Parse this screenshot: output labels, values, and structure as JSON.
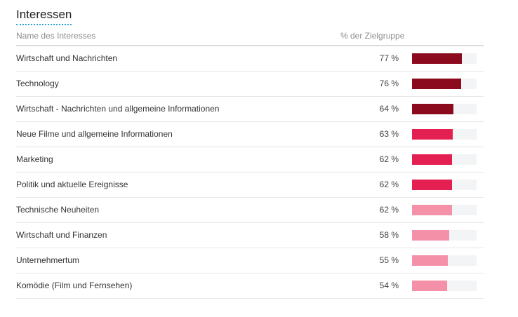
{
  "section": {
    "title": "Interessen"
  },
  "table": {
    "header": {
      "name": "Name des Interesses",
      "pct": "% der Zielgruppe"
    },
    "rows": [
      {
        "name": "Wirtschaft und Nachrichten",
        "pct_label": "77 %",
        "value": 77,
        "color": "#8b0a1e"
      },
      {
        "name": "Technology",
        "pct_label": "76 %",
        "value": 76,
        "color": "#8b0a1e"
      },
      {
        "name": "Wirtschaft - Nachrichten und allgemeine Informationen",
        "pct_label": "64 %",
        "value": 64,
        "color": "#8b0a1e"
      },
      {
        "name": "Neue Filme und allgemeine Informationen",
        "pct_label": "63 %",
        "value": 63,
        "color": "#e41f51"
      },
      {
        "name": "Marketing",
        "pct_label": "62 %",
        "value": 62,
        "color": "#e41f51"
      },
      {
        "name": "Politik und aktuelle Ereignisse",
        "pct_label": "62 %",
        "value": 62,
        "color": "#e41f51"
      },
      {
        "name": "Technische Neuheiten",
        "pct_label": "62 %",
        "value": 62,
        "color": "#f490a8"
      },
      {
        "name": "Wirtschaft und Finanzen",
        "pct_label": "58 %",
        "value": 58,
        "color": "#f490a8"
      },
      {
        "name": "Unternehmertum",
        "pct_label": "55 %",
        "value": 55,
        "color": "#f490a8"
      },
      {
        "name": "Komödie (Film und Fernsehen)",
        "pct_label": "54 %",
        "value": 54,
        "color": "#f490a8"
      }
    ]
  }
}
